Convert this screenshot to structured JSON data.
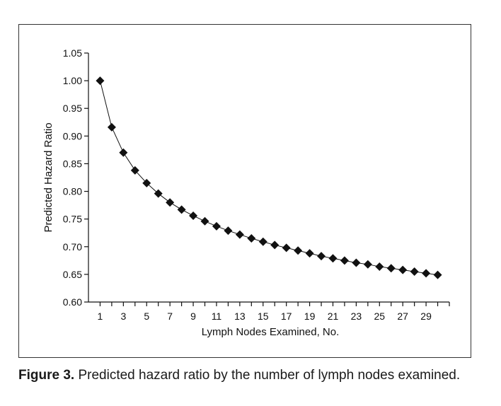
{
  "chart_data": {
    "type": "line",
    "markers": "diamond",
    "xlabel": "Lymph Nodes Examined, No.",
    "ylabel": "Predicted Hazard Ratio",
    "xlim": [
      0,
      31
    ],
    "ylim": [
      0.6,
      1.05
    ],
    "x_ticks": [
      1,
      3,
      5,
      7,
      9,
      11,
      13,
      15,
      17,
      19,
      21,
      23,
      25,
      27,
      29
    ],
    "x_tick_labels": [
      "1",
      "3",
      "5",
      "7",
      "9",
      "11",
      "13",
      "15",
      "17",
      "19",
      "21",
      "23",
      "25",
      "27",
      "29"
    ],
    "y_ticks": [
      0.6,
      0.65,
      0.7,
      0.75,
      0.8,
      0.85,
      0.9,
      0.95,
      1.0,
      1.05
    ],
    "y_tick_labels": [
      "0.60",
      "0.65",
      "0.70",
      "0.75",
      "0.80",
      "0.85",
      "0.90",
      "0.95",
      "1.00",
      "1.05"
    ],
    "grid": false,
    "color": "#111111",
    "series": [
      {
        "x": [
          1,
          2,
          3,
          4,
          5,
          6,
          7,
          8,
          9,
          10,
          11,
          12,
          13,
          14,
          15,
          16,
          17,
          18,
          19,
          20,
          21,
          22,
          23,
          24,
          25,
          26,
          27,
          28,
          29,
          30
        ],
        "values": [
          1.0,
          0.916,
          0.87,
          0.838,
          0.815,
          0.796,
          0.78,
          0.767,
          0.756,
          0.746,
          0.737,
          0.729,
          0.722,
          0.715,
          0.709,
          0.703,
          0.698,
          0.693,
          0.688,
          0.683,
          0.679,
          0.675,
          0.671,
          0.668,
          0.664,
          0.661,
          0.658,
          0.655,
          0.652,
          0.649
        ]
      }
    ]
  },
  "caption": {
    "label": "Figure 3.",
    "text": " Predicted hazard ratio by the number of lymph nodes examined."
  }
}
